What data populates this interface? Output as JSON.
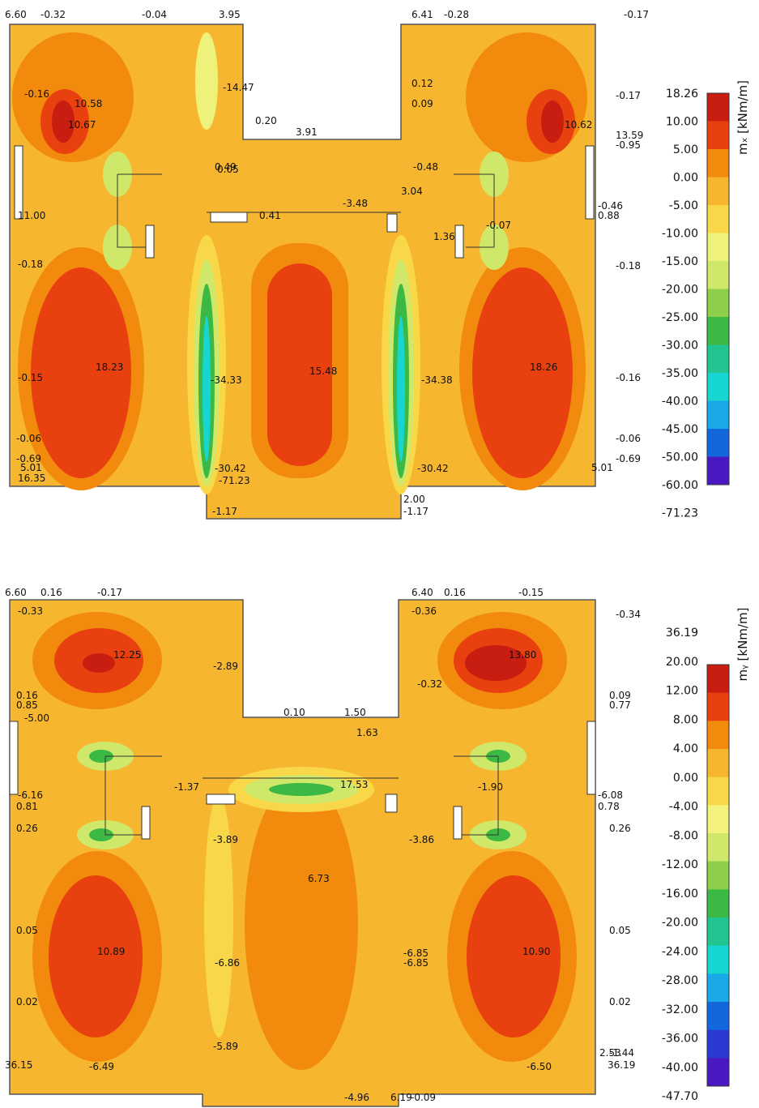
{
  "panels": [
    {
      "legend": {
        "title": "mₓ [kNm/m]",
        "values": [
          "18.26",
          "10.00",
          "5.00",
          "0.00",
          "-5.00",
          "-10.00",
          "-15.00",
          "-20.00",
          "-25.00",
          "-30.00",
          "-35.00",
          "-40.00",
          "-45.00",
          "-50.00",
          "-60.00",
          "-71.23"
        ],
        "colors": [
          "#c81e12",
          "#e8400f",
          "#f28a0d",
          "#f6b630",
          "#f8d848",
          "#eef27a",
          "#cfe86a",
          "#8dcf4a",
          "#3cb944",
          "#22c491",
          "#17d6d2",
          "#1aa9e8",
          "#1466dc",
          "#4a18c0"
        ]
      },
      "labels": [
        "6.60",
        "-0.32",
        "-0.04",
        "3.95",
        "6.41",
        "-0.28",
        "-0.17",
        "-0.16",
        "10.58",
        "10.67",
        "-14.47",
        "0.20",
        "3.91",
        "0.12",
        "0.09",
        "-0.17",
        "10.62",
        "13.59",
        "-0.95",
        "-0.48",
        "3.04",
        "-0.18",
        "-0.07",
        "1.36",
        "-0.18",
        "18.23",
        "-34.33",
        "15.48",
        "-34.38",
        "18.26",
        "-0.15",
        "-0.16",
        "-0.06",
        "-0.69",
        "5.01",
        "-30.42",
        "-71.23",
        "2.00",
        "-1.17",
        "-1.17",
        "16.35",
        "0.41",
        "-3.48",
        "11.00",
        "0.88",
        "-0.46",
        "-0.06",
        "-0.69",
        "5.01",
        "-30.42",
        "0.05",
        "0.49"
      ]
    },
    {
      "legend": {
        "title": "mᵧ [kNm/m]",
        "values": [
          "36.19",
          "20.00",
          "12.00",
          "8.00",
          "4.00",
          "0.00",
          "-4.00",
          "-8.00",
          "-12.00",
          "-16.00",
          "-20.00",
          "-24.00",
          "-28.00",
          "-32.00",
          "-36.00",
          "-40.00",
          "-47.70"
        ],
        "colors": [
          "#c81e12",
          "#e8400f",
          "#f28a0d",
          "#f6b630",
          "#f8d848",
          "#f3f27c",
          "#cfe86a",
          "#8dcf4a",
          "#3cb944",
          "#22c491",
          "#17d6d2",
          "#1aa9e8",
          "#1466dc",
          "#2a3ad0",
          "#4a18c0"
        ]
      },
      "labels": [
        "6.60",
        "0.16",
        "-0.17",
        "-0.33",
        "-0.36",
        "6.40",
        "0.16",
        "-0.15",
        "-0.34",
        "12.25",
        "13.80",
        "-2.89",
        "-0.32",
        "0.10",
        "1.50",
        "1.63",
        "0.16",
        "0.85",
        "-5.00",
        "0.26",
        "0.26",
        "6.73",
        "0.05",
        "0.05",
        "10.89",
        "10.90",
        "-6.86",
        "-6.85",
        "0.02",
        "0.02",
        "-6.49",
        "-6.50",
        "36.15",
        "36.19",
        "-4.96",
        "-0.09",
        "6.19",
        "-5.89",
        "-3.89",
        "-3.86",
        "-1.37",
        "-1.90",
        "17.53",
        "-6.16",
        "-6.08",
        "0.78",
        "0.81",
        "-1.44",
        "2.53",
        "0.09",
        "0.77",
        "-6.85"
      ]
    }
  ]
}
